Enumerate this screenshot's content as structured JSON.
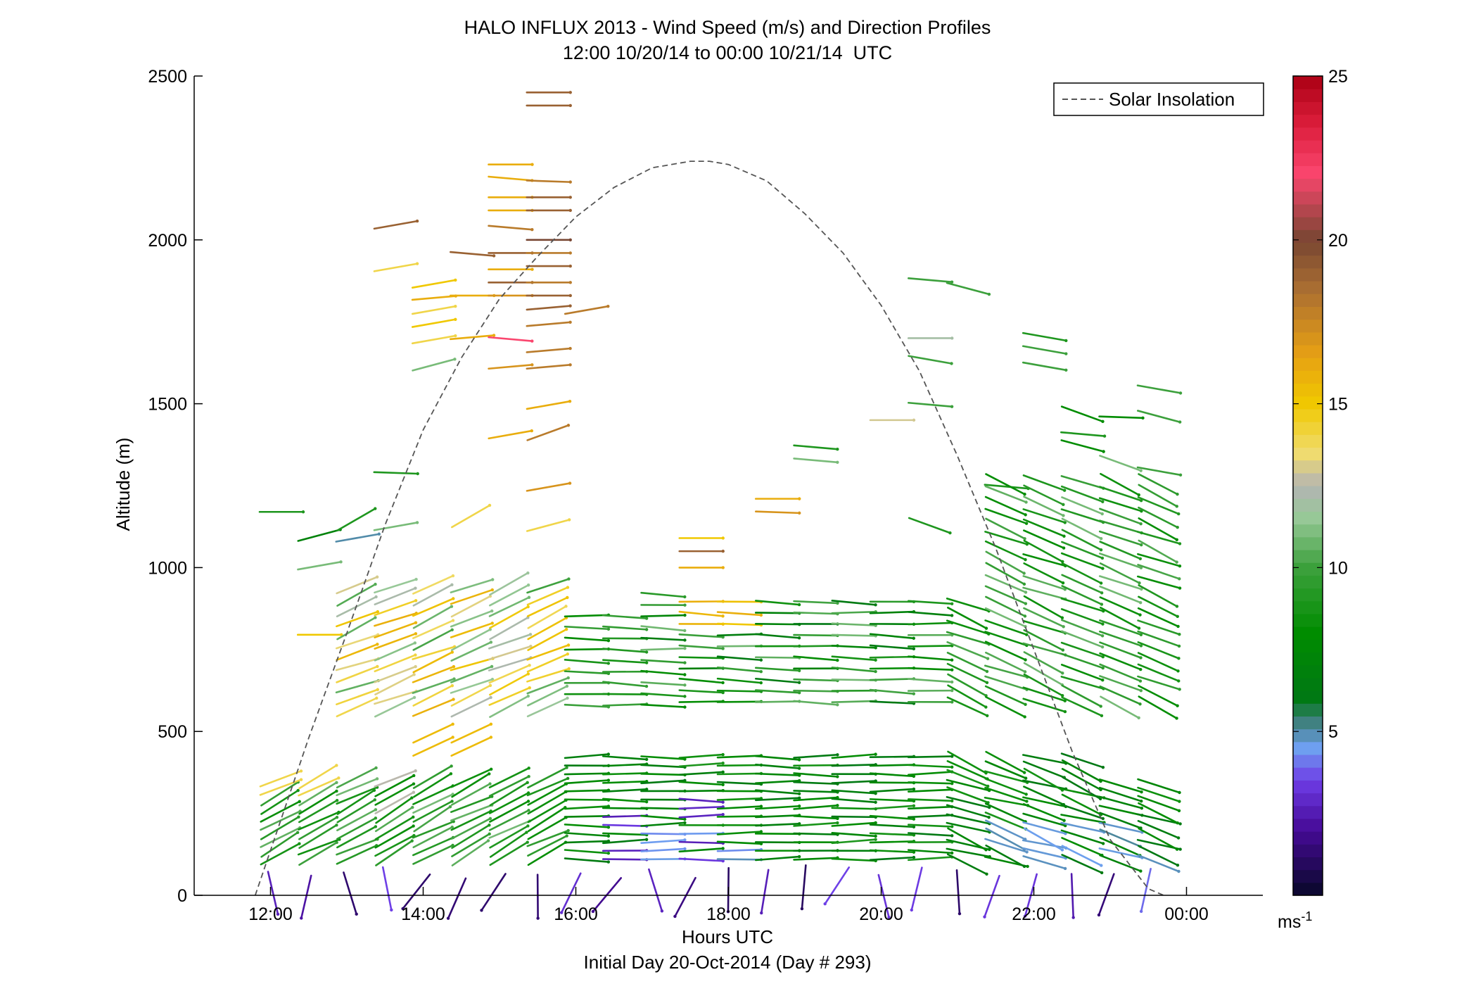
{
  "chart_data": {
    "type": "scatter",
    "title": "HALO INFLUX 2013 - Wind Speed (m/s) and Direction Profiles",
    "subtitle": "12:00 10/20/14 to 00:00 10/21/14  UTC",
    "xlabel": "Hours UTC",
    "xlabel2": "Initial Day 20-Oct-2014 (Day # 293)",
    "ylabel": "Altitude (m)",
    "xlim": [
      11,
      25
    ],
    "ylim": [
      0,
      2500
    ],
    "x_ticks": [
      12,
      14,
      16,
      18,
      20,
      22,
      24
    ],
    "x_tick_labels": [
      "12:00",
      "14:00",
      "16:00",
      "18:00",
      "20:00",
      "22:00",
      "00:00"
    ],
    "y_ticks": [
      0,
      500,
      1000,
      1500,
      2000,
      2500
    ],
    "y_tick_labels": [
      "0",
      "500",
      "1000",
      "1500",
      "2000",
      "2500"
    ],
    "grid": false,
    "legend": {
      "position": "top-right",
      "entries": [
        {
          "label": "Solar Insolation",
          "style": "dashed",
          "color": "#555555"
        }
      ]
    },
    "colorbar": {
      "min": 0,
      "max": 25,
      "ticks": [
        5,
        10,
        15,
        20,
        25
      ],
      "tick_labels": [
        "5",
        "10",
        "15",
        "20",
        "25"
      ],
      "unit_label": "ms",
      "unit_exponent": "-1"
    },
    "solar_insolation": {
      "x": [
        11.8,
        12.5,
        13.0,
        13.5,
        14.0,
        14.5,
        15.0,
        15.5,
        16.0,
        16.5,
        17.0,
        17.5,
        17.75,
        18.0,
        18.5,
        19.0,
        19.5,
        20.0,
        20.5,
        21.0,
        21.5,
        22.0,
        22.5,
        23.0,
        23.5,
        23.7
      ],
      "y": [
        0,
        480,
        800,
        1130,
        1420,
        1640,
        1820,
        1950,
        2070,
        2160,
        2220,
        2240,
        2240,
        2230,
        2180,
        2080,
        1960,
        1800,
        1600,
        1340,
        1060,
        750,
        440,
        170,
        20,
        0
      ]
    },
    "profile_times": [
      12.0,
      12.5,
      13.0,
      13.5,
      14.0,
      14.5,
      15.0,
      15.5,
      16.0,
      16.5,
      17.0,
      17.5,
      18.0,
      18.5,
      19.0,
      19.5,
      20.0,
      20.5,
      21.0,
      21.5,
      22.0,
      22.5,
      23.0,
      23.5
    ],
    "vectors": [
      {
        "t": 12.0,
        "z": 1170,
        "s": 9,
        "d": 90
      },
      {
        "t": 12.5,
        "z": 1090,
        "s": 7,
        "d": 75
      },
      {
        "t": 12.5,
        "z": 1000,
        "s": 11,
        "d": 80
      },
      {
        "t": 12.5,
        "z": 795,
        "s": 15,
        "d": 90
      },
      {
        "t": 13.0,
        "z": 1130,
        "s": 9,
        "d": 60
      },
      {
        "t": 13.0,
        "z": 1085,
        "s": 5,
        "d": 80
      },
      {
        "t": 13.5,
        "z": 1120,
        "s": 11,
        "d": 80
      },
      {
        "t": 13.5,
        "z": 1290,
        "s": 9,
        "d": 92
      },
      {
        "t": 13.5,
        "z": 2040,
        "s": 19,
        "d": 80
      },
      {
        "t": 13.5,
        "z": 1910,
        "s": 14,
        "d": 80
      },
      {
        "t": 14.0,
        "z": 1860,
        "s": 15,
        "d": 80
      },
      {
        "t": 14.0,
        "z": 1820,
        "s": 16,
        "d": 85
      },
      {
        "t": 14.0,
        "z": 1780,
        "s": 14,
        "d": 80
      },
      {
        "t": 14.0,
        "z": 1740,
        "s": 15,
        "d": 80
      },
      {
        "t": 14.0,
        "z": 1690,
        "s": 14,
        "d": 80
      },
      {
        "t": 14.0,
        "z": 1610,
        "s": 11,
        "d": 75
      },
      {
        "t": 14.5,
        "z": 1830,
        "s": 16,
        "d": 90
      },
      {
        "t": 14.5,
        "z": 1700,
        "s": 16,
        "d": 85
      },
      {
        "t": 14.5,
        "z": 1960,
        "s": 19,
        "d": 95
      },
      {
        "t": 14.5,
        "z": 1140,
        "s": 14,
        "d": 60
      },
      {
        "t": 15.0,
        "z": 2230,
        "s": 16,
        "d": 90
      },
      {
        "t": 15.0,
        "z": 2190,
        "s": 16,
        "d": 95
      },
      {
        "t": 15.0,
        "z": 2130,
        "s": 16,
        "d": 90
      },
      {
        "t": 15.0,
        "z": 2090,
        "s": 16,
        "d": 90
      },
      {
        "t": 15.0,
        "z": 2040,
        "s": 18,
        "d": 95
      },
      {
        "t": 15.0,
        "z": 1960,
        "s": 19,
        "d": 90
      },
      {
        "t": 15.0,
        "z": 1910,
        "s": 16,
        "d": 90
      },
      {
        "t": 15.0,
        "z": 1870,
        "s": 19,
        "d": 90
      },
      {
        "t": 15.0,
        "z": 1830,
        "s": 17,
        "d": 90
      },
      {
        "t": 15.0,
        "z": 1700,
        "s": 22,
        "d": 95
      },
      {
        "t": 15.0,
        "z": 1610,
        "s": 17,
        "d": 85
      },
      {
        "t": 15.0,
        "z": 1400,
        "s": 16,
        "d": 80
      },
      {
        "t": 15.5,
        "z": 2450,
        "s": 19,
        "d": 90
      },
      {
        "t": 15.5,
        "z": 2410,
        "s": 19,
        "d": 90
      },
      {
        "t": 15.5,
        "z": 2180,
        "s": 18,
        "d": 92
      },
      {
        "t": 15.5,
        "z": 2130,
        "s": 19,
        "d": 90
      },
      {
        "t": 15.5,
        "z": 2090,
        "s": 19,
        "d": 90
      },
      {
        "t": 15.5,
        "z": 2000,
        "s": 20,
        "d": 90
      },
      {
        "t": 15.5,
        "z": 1960,
        "s": 18,
        "d": 90
      },
      {
        "t": 15.5,
        "z": 1920,
        "s": 19,
        "d": 90
      },
      {
        "t": 15.5,
        "z": 1870,
        "s": 18,
        "d": 90
      },
      {
        "t": 15.5,
        "z": 1830,
        "s": 19,
        "d": 90
      },
      {
        "t": 15.5,
        "z": 1790,
        "s": 19,
        "d": 85
      },
      {
        "t": 15.5,
        "z": 1740,
        "s": 18,
        "d": 85
      },
      {
        "t": 15.5,
        "z": 1660,
        "s": 18,
        "d": 85
      },
      {
        "t": 15.5,
        "z": 1610,
        "s": 18,
        "d": 85
      },
      {
        "t": 15.5,
        "z": 1490,
        "s": 16,
        "d": 80
      },
      {
        "t": 15.5,
        "z": 1400,
        "s": 18,
        "d": 70
      },
      {
        "t": 15.5,
        "z": 1240,
        "s": 17,
        "d": 80
      },
      {
        "t": 15.5,
        "z": 1120,
        "s": 14,
        "d": 75
      },
      {
        "t": 16.0,
        "z": 1780,
        "s": 18,
        "d": 80
      },
      {
        "t": 17.5,
        "z": 1090,
        "s": 15,
        "d": 90
      },
      {
        "t": 17.5,
        "z": 1050,
        "s": 19,
        "d": 90
      },
      {
        "t": 17.5,
        "z": 1000,
        "s": 16,
        "d": 90
      },
      {
        "t": 18.5,
        "z": 1210,
        "s": 16,
        "d": 90
      },
      {
        "t": 18.5,
        "z": 1170,
        "s": 17,
        "d": 92
      },
      {
        "t": 19.0,
        "z": 1370,
        "s": 9,
        "d": 95
      },
      {
        "t": 19.0,
        "z": 1330,
        "s": 11,
        "d": 95
      },
      {
        "t": 20.0,
        "z": 1450,
        "s": 13,
        "d": 90
      },
      {
        "t": 20.5,
        "z": 1880,
        "s": 10,
        "d": 95
      },
      {
        "t": 20.5,
        "z": 1700,
        "s": 12,
        "d": 90
      },
      {
        "t": 20.5,
        "z": 1640,
        "s": 10,
        "d": 100
      },
      {
        "t": 20.5,
        "z": 1500,
        "s": 10,
        "d": 95
      },
      {
        "t": 20.5,
        "z": 1140,
        "s": 9,
        "d": 110
      },
      {
        "t": 21.0,
        "z": 1860,
        "s": 10,
        "d": 105
      },
      {
        "t": 21.5,
        "z": 1250,
        "s": 9,
        "d": 95
      },
      {
        "t": 22.0,
        "z": 1710,
        "s": 9,
        "d": 100
      },
      {
        "t": 22.0,
        "z": 1670,
        "s": 10,
        "d": 100
      },
      {
        "t": 22.0,
        "z": 1620,
        "s": 10,
        "d": 100
      },
      {
        "t": 22.5,
        "z": 1480,
        "s": 8,
        "d": 110
      },
      {
        "t": 22.5,
        "z": 1410,
        "s": 9,
        "d": 95
      },
      {
        "t": 22.5,
        "z": 1380,
        "s": 8,
        "d": 105
      },
      {
        "t": 23.0,
        "z": 1460,
        "s": 8,
        "d": 92
      },
      {
        "t": 23.0,
        "z": 1330,
        "s": 11,
        "d": 110
      },
      {
        "t": 23.5,
        "z": 1550,
        "s": 10,
        "d": 100
      },
      {
        "t": 23.5,
        "z": 1470,
        "s": 10,
        "d": 105
      },
      {
        "t": 23.5,
        "z": 1300,
        "s": 10,
        "d": 100
      }
    ]
  }
}
